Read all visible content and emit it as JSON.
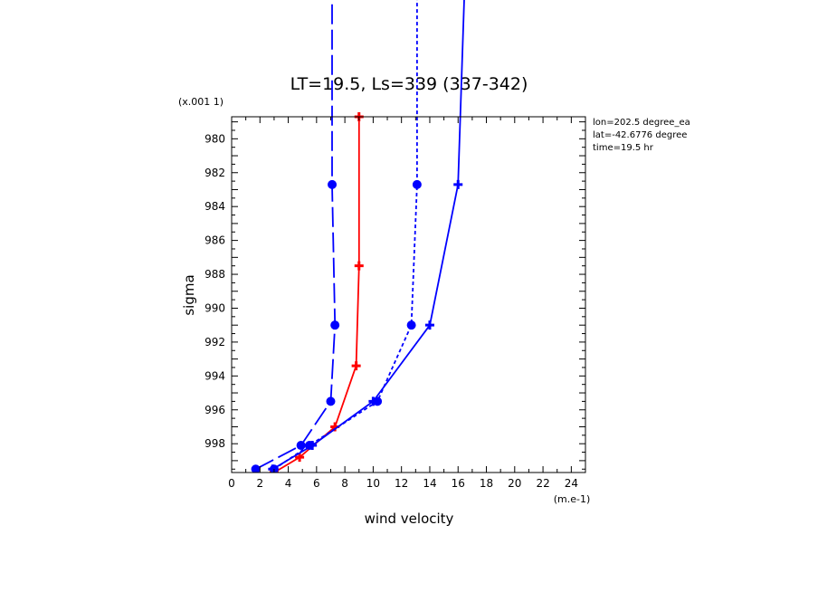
{
  "chart_data": {
    "type": "line",
    "title": "LT=19.5, Ls=339 (337-342)",
    "xlabel": "wind velocity",
    "ylabel": "sigma",
    "x_unit_label": "(m.e-1)",
    "y_unit_label": "(x.001 1)",
    "xlim": [
      0,
      25
    ],
    "ylim": [
      999.7,
      978.7
    ],
    "x_tick_labels": [
      "0",
      "2",
      "4",
      "6",
      "8",
      "10",
      "12",
      "14",
      "16",
      "18",
      "20",
      "22",
      "24"
    ],
    "y_tick_labels": [
      "980",
      "982",
      "984",
      "986",
      "988",
      "990",
      "992",
      "994",
      "996",
      "998"
    ],
    "info": [
      "lon=202.5 degree_ea",
      "lat=-42.6776 degree",
      "time=19.5 hr"
    ],
    "series": [
      {
        "color": "#0000ff",
        "style": "long-dash",
        "marker": "circle",
        "x": [
          1.7,
          4.9,
          7.0,
          7.3,
          7.1,
          7.1
        ],
        "y": [
          999.5,
          998.1,
          995.5,
          991.0,
          982.7,
          970.0
        ]
      },
      {
        "color": "#ff0000",
        "style": "solid",
        "marker": "plus",
        "x": [
          3.0,
          4.8,
          7.3,
          8.8,
          9.0,
          9.0
        ],
        "y": [
          999.7,
          998.8,
          997.0,
          993.4,
          987.5,
          978.7
        ]
      },
      {
        "color": "#0000ff",
        "style": "short-dash",
        "marker": "circle",
        "x": [
          3.0,
          5.5,
          10.3,
          12.7,
          13.1,
          13.1
        ],
        "y": [
          999.5,
          998.1,
          995.5,
          991.0,
          982.7,
          970.0
        ]
      },
      {
        "color": "#0000ff",
        "style": "solid",
        "marker": "plus",
        "x": [
          2.9,
          5.7,
          10.0,
          14.0,
          16.0,
          16.5
        ],
        "y": [
          999.5,
          998.1,
          995.5,
          991.0,
          982.7,
          970.0
        ]
      }
    ]
  }
}
